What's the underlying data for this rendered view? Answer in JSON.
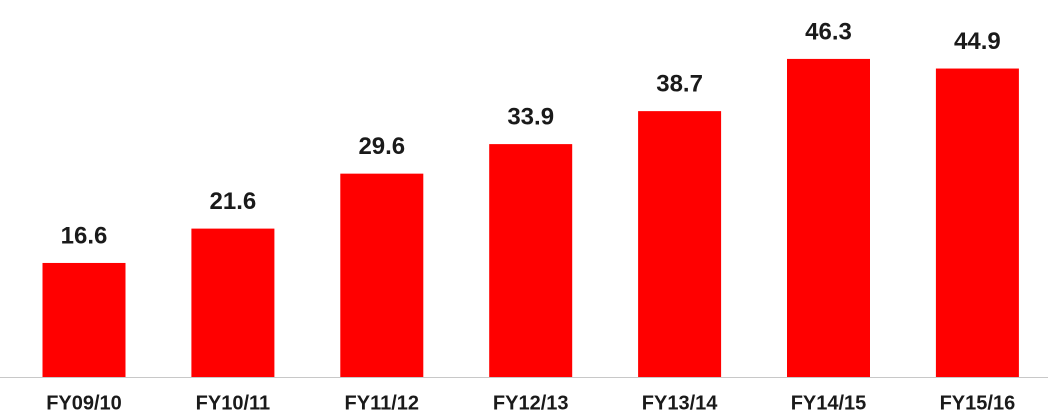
{
  "chart_data": {
    "type": "bar",
    "categories": [
      "FY09/10",
      "FY10/11",
      "FY11/12",
      "FY12/13",
      "FY13/14",
      "FY14/15",
      "FY15/16"
    ],
    "values": [
      16.6,
      21.6,
      29.6,
      33.9,
      38.7,
      46.3,
      44.9
    ],
    "color": "#ff0000"
  }
}
